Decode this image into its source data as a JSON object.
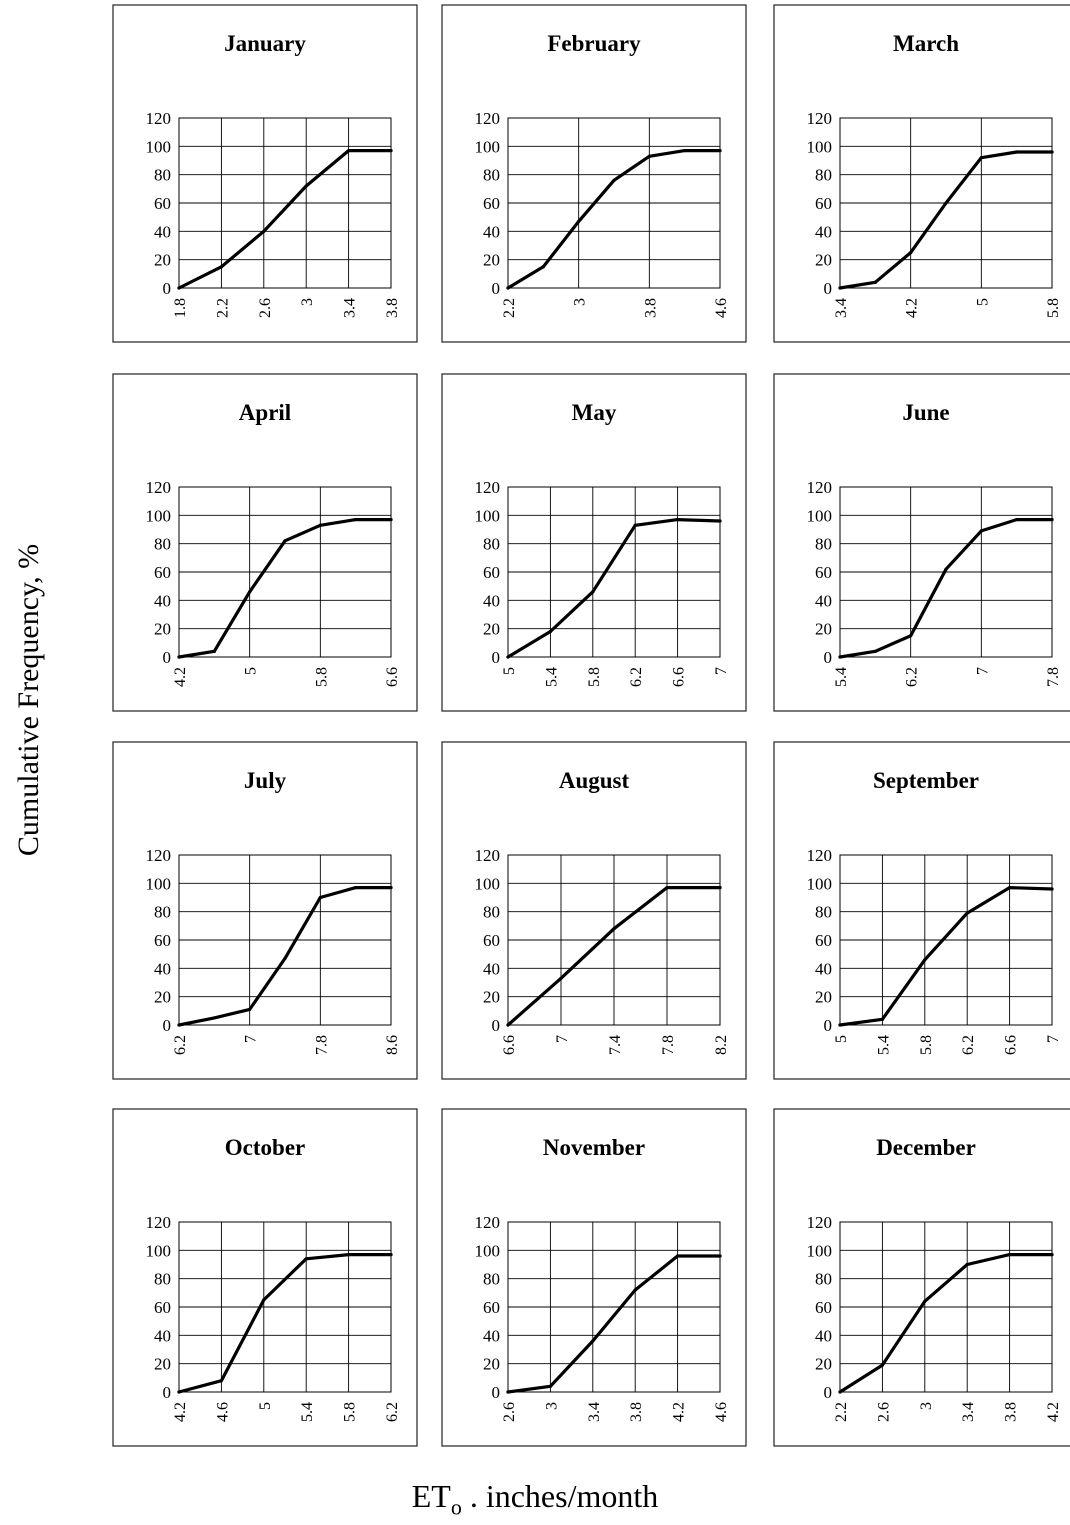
{
  "figure": {
    "ylabel": "Cumulative Frequency, %",
    "xlabel_main": "ET",
    "xlabel_sub": "o",
    "xlabel_rest": " . inches/month"
  },
  "chart_data": [
    {
      "type": "line",
      "title": "January",
      "ylim": [
        0,
        120
      ],
      "yticks": [
        0,
        20,
        40,
        60,
        80,
        100,
        120
      ],
      "xticks": [
        1.8,
        2.2,
        2.6,
        3,
        3.4,
        3.8
      ],
      "grid": true,
      "x": [
        1.8,
        2.2,
        2.6,
        3.0,
        3.4,
        3.8
      ],
      "y": [
        0,
        15,
        40,
        72,
        97,
        97
      ]
    },
    {
      "type": "line",
      "title": "February",
      "ylim": [
        0,
        120
      ],
      "yticks": [
        0,
        20,
        40,
        60,
        80,
        100,
        120
      ],
      "xticks": [
        2.2,
        3,
        3.8,
        4.6
      ],
      "grid": true,
      "x": [
        2.2,
        2.6,
        3.0,
        3.4,
        3.8,
        4.2,
        4.6
      ],
      "y": [
        0,
        15,
        47,
        76,
        93,
        97,
        97
      ]
    },
    {
      "type": "line",
      "title": "March",
      "ylim": [
        0,
        120
      ],
      "yticks": [
        0,
        20,
        40,
        60,
        80,
        100,
        120
      ],
      "xticks": [
        3.4,
        4.2,
        5,
        5.8
      ],
      "grid": true,
      "x": [
        3.4,
        3.8,
        4.2,
        4.6,
        5.0,
        5.4,
        5.8
      ],
      "y": [
        0,
        4,
        25,
        60,
        92,
        96,
        96
      ]
    },
    {
      "type": "line",
      "title": "April",
      "ylim": [
        0,
        120
      ],
      "yticks": [
        0,
        20,
        40,
        60,
        80,
        100,
        120
      ],
      "xticks": [
        4.2,
        5,
        5.8,
        6.6
      ],
      "grid": true,
      "x": [
        4.2,
        4.6,
        5.0,
        5.4,
        5.8,
        6.2,
        6.6
      ],
      "y": [
        0,
        4,
        46,
        82,
        93,
        97,
        97
      ]
    },
    {
      "type": "line",
      "title": "May",
      "ylim": [
        0,
        120
      ],
      "yticks": [
        0,
        20,
        40,
        60,
        80,
        100,
        120
      ],
      "xticks": [
        5,
        5.4,
        5.8,
        6.2,
        6.6,
        7
      ],
      "grid": true,
      "x": [
        5.0,
        5.4,
        5.8,
        6.2,
        6.6,
        7.0
      ],
      "y": [
        0,
        18,
        46,
        93,
        97,
        96
      ]
    },
    {
      "type": "line",
      "title": "June",
      "ylim": [
        0,
        120
      ],
      "yticks": [
        0,
        20,
        40,
        60,
        80,
        100,
        120
      ],
      "xticks": [
        5.4,
        6.2,
        7,
        7.8
      ],
      "grid": true,
      "x": [
        5.4,
        5.8,
        6.2,
        6.6,
        7.0,
        7.4,
        7.8
      ],
      "y": [
        0,
        4,
        15,
        62,
        89,
        97,
        97
      ]
    },
    {
      "type": "line",
      "title": "July",
      "ylim": [
        0,
        120
      ],
      "yticks": [
        0,
        20,
        40,
        60,
        80,
        100,
        120
      ],
      "xticks": [
        6.2,
        7,
        7.8,
        8.6
      ],
      "grid": true,
      "x": [
        6.2,
        6.6,
        7.0,
        7.4,
        7.8,
        8.2,
        8.6
      ],
      "y": [
        0,
        5,
        11,
        47,
        90,
        97,
        97
      ]
    },
    {
      "type": "line",
      "title": "August",
      "ylim": [
        0,
        120
      ],
      "yticks": [
        0,
        20,
        40,
        60,
        80,
        100,
        120
      ],
      "xticks": [
        6.6,
        7,
        7.4,
        7.8,
        8.2
      ],
      "grid": true,
      "x": [
        6.6,
        7.0,
        7.4,
        7.8,
        8.2
      ],
      "y": [
        0,
        33,
        68,
        97,
        97
      ]
    },
    {
      "type": "line",
      "title": "September",
      "ylim": [
        0,
        120
      ],
      "yticks": [
        0,
        20,
        40,
        60,
        80,
        100,
        120
      ],
      "xticks": [
        5,
        5.4,
        5.8,
        6.2,
        6.6,
        7
      ],
      "grid": true,
      "x": [
        5.0,
        5.4,
        5.8,
        6.2,
        6.6,
        7.0
      ],
      "y": [
        0,
        4,
        46,
        79,
        97,
        96
      ]
    },
    {
      "type": "line",
      "title": "October",
      "ylim": [
        0,
        120
      ],
      "yticks": [
        0,
        20,
        40,
        60,
        80,
        100,
        120
      ],
      "xticks": [
        4.2,
        4.6,
        5,
        5.4,
        5.8,
        6.2
      ],
      "grid": true,
      "x": [
        4.2,
        4.6,
        5.0,
        5.4,
        5.8,
        6.2
      ],
      "y": [
        0,
        8,
        65,
        94,
        97,
        97
      ]
    },
    {
      "type": "line",
      "title": "November",
      "ylim": [
        0,
        120
      ],
      "yticks": [
        0,
        20,
        40,
        60,
        80,
        100,
        120
      ],
      "xticks": [
        2.6,
        3,
        3.4,
        3.8,
        4.2,
        4.6
      ],
      "grid": true,
      "x": [
        2.6,
        3.0,
        3.4,
        3.8,
        4.2,
        4.6
      ],
      "y": [
        0,
        4,
        36,
        72,
        96,
        96
      ]
    },
    {
      "type": "line",
      "title": "December",
      "ylim": [
        0,
        120
      ],
      "yticks": [
        0,
        20,
        40,
        60,
        80,
        100,
        120
      ],
      "xticks": [
        2.2,
        2.6,
        3,
        3.4,
        3.8,
        4.2
      ],
      "grid": true,
      "x": [
        2.2,
        2.6,
        3.0,
        3.4,
        3.8,
        4.2
      ],
      "y": [
        0,
        19,
        64,
        90,
        97,
        97
      ]
    }
  ]
}
